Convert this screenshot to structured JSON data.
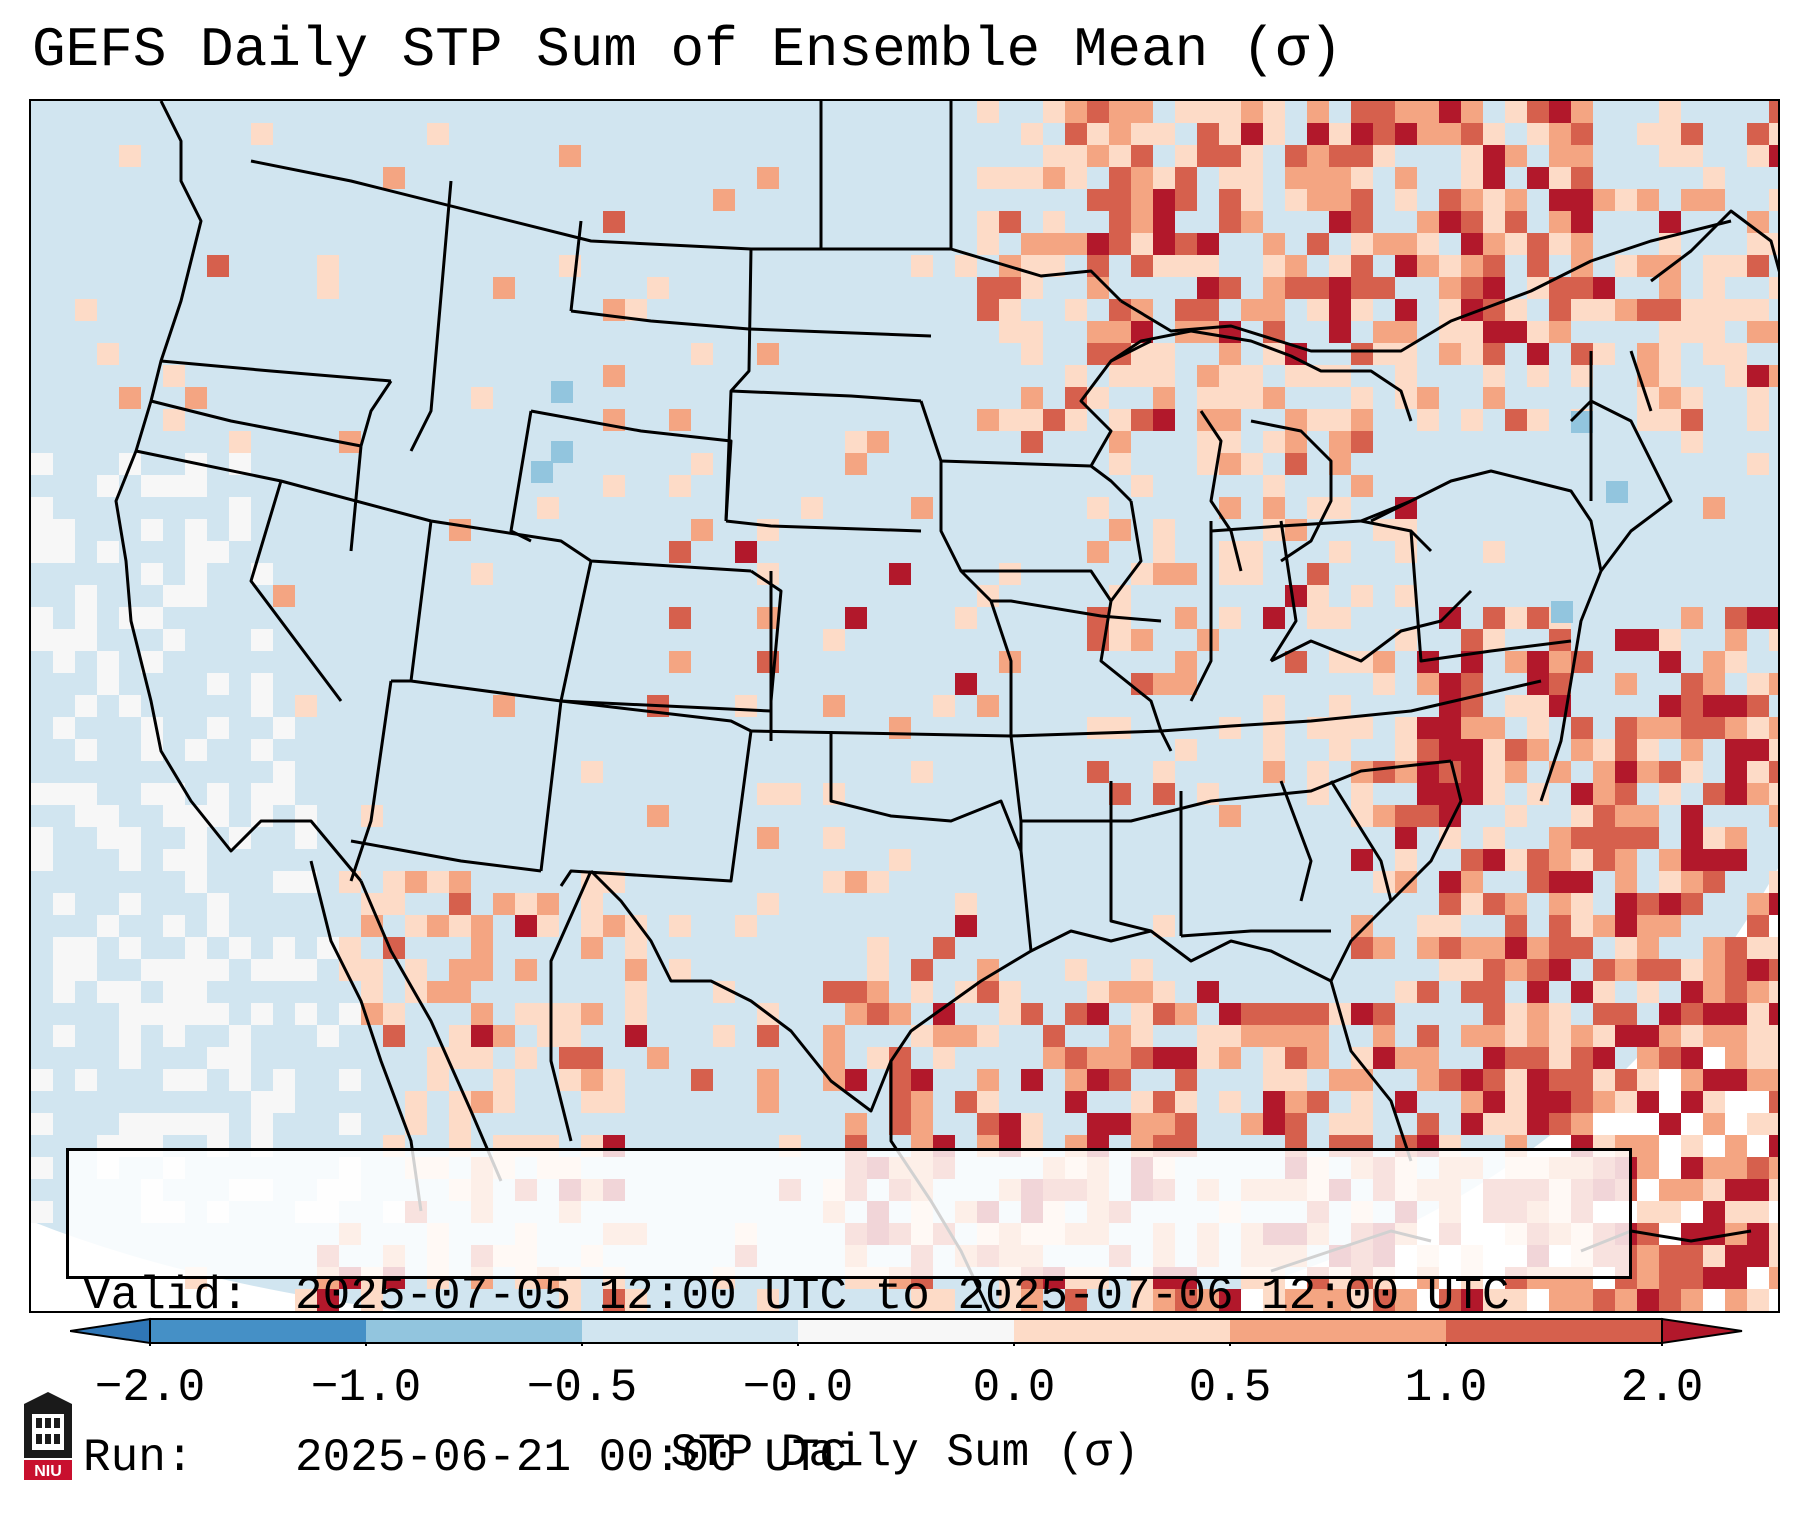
{
  "title": "GEFS Daily STP Sum of Ensemble Mean (σ)",
  "info": {
    "valid_label": "Valid:",
    "valid_value": "2025-07-05 12:00 UTC to 2025-07-06 12:00 UTC",
    "run_label": "Run:",
    "run_value": "2025-06-21 00:00 UTC"
  },
  "colorbar": {
    "label": "STP Daily Sum (σ)",
    "ticks": [
      "−2.0",
      "−1.0",
      "−0.5",
      "−0.0",
      "0.0",
      "0.5",
      "1.0",
      "2.0"
    ],
    "colors": {
      "below": "#2f76b6",
      "neg2_neg1": "#4590c6",
      "neg1_neg05": "#92c5de",
      "neg05_neg0": "#d1e5f0",
      "neg0_pos0": "#f7f7f7",
      "pos0_05": "#fddbc7",
      "pos05_1": "#f4a582",
      "pos1_2": "#d6604d",
      "above": "#b2182b"
    }
  },
  "map": {
    "region": "Continental United States, southern Canada, northern Mexico, Gulf of Mexico",
    "background_color": "#d1e5f0",
    "land_outline_color": "#000000"
  },
  "logo": {
    "text": "NIU",
    "color": "#c8102e"
  }
}
